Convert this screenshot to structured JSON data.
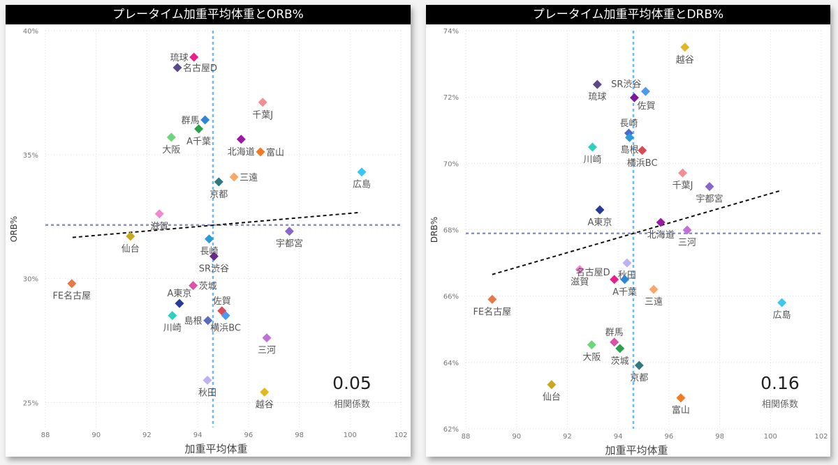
{
  "colors": {
    "mean_line": "#8a8fd0",
    "mean_x_line": "#6cb8f0",
    "trend": "#111111",
    "grid": "#dddddd"
  },
  "chart_data": [
    {
      "type": "scatter",
      "title": "プレータイム加重平均体重とORB%",
      "xlabel": "加重平均体重",
      "ylabel": "ORB%",
      "xlim": [
        88,
        102
      ],
      "ylim": [
        24,
        40
      ],
      "xticks": [
        88,
        90,
        92,
        94,
        96,
        98,
        100,
        102
      ],
      "yticks": [
        25,
        30,
        35,
        40
      ],
      "yfmt": "%",
      "mean_x": 94.6,
      "mean_y": 32.16,
      "trendline": [
        [
          89.07,
          31.66
        ],
        [
          100.42,
          32.67
        ]
      ],
      "correlation": {
        "value": "0.05",
        "label": "相関係数"
      },
      "points": [
        {
          "name": "琉球",
          "x": 93.85,
          "y": 38.93,
          "color": "#e91e8c",
          "label_pos": "left"
        },
        {
          "name": "名古屋D",
          "x": 93.2,
          "y": 38.51,
          "color": "#5b4a8a",
          "label_pos": "right"
        },
        {
          "name": "千葉J",
          "x": 96.56,
          "y": 37.11,
          "color": "#f28e94",
          "label_pos": "below"
        },
        {
          "name": "群馬",
          "x": 94.29,
          "y": 36.4,
          "color": "#2d86d6",
          "label_pos": "left"
        },
        {
          "name": "A千葉",
          "x": 94.04,
          "y": 36.04,
          "color": "#2aa04a",
          "label_pos": "below"
        },
        {
          "name": "大阪",
          "x": 92.96,
          "y": 35.7,
          "color": "#6bd67a",
          "label_pos": "below"
        },
        {
          "name": "北海道",
          "x": 95.71,
          "y": 35.62,
          "color": "#9a1aa0",
          "label_pos": "below"
        },
        {
          "name": "富山",
          "x": 96.47,
          "y": 35.11,
          "color": "#f27a20",
          "label_pos": "right"
        },
        {
          "name": "三遠",
          "x": 95.43,
          "y": 34.1,
          "color": "#f8a868",
          "label_pos": "right"
        },
        {
          "name": "京都",
          "x": 94.83,
          "y": 33.9,
          "color": "#2e7a80",
          "label_pos": "below"
        },
        {
          "name": "広島",
          "x": 100.46,
          "y": 34.3,
          "color": "#38c8f0",
          "label_pos": "below"
        },
        {
          "name": "滋賀",
          "x": 92.49,
          "y": 32.61,
          "color": "#f088d0",
          "label_pos": "below"
        },
        {
          "name": "宇都宮",
          "x": 97.61,
          "y": 31.91,
          "color": "#8a66c8",
          "label_pos": "below"
        },
        {
          "name": "仙台",
          "x": 91.35,
          "y": 31.71,
          "color": "#c8a820",
          "label_pos": "below"
        },
        {
          "name": "長崎",
          "x": 94.45,
          "y": 31.6,
          "color": "#2a9ad8",
          "label_pos": "below"
        },
        {
          "name": "SR渋谷",
          "x": 94.64,
          "y": 30.9,
          "color": "#6a2a8a",
          "label_pos": "below"
        },
        {
          "name": "FE名古屋",
          "x": 89.04,
          "y": 29.8,
          "color": "#e8784a",
          "label_pos": "below"
        },
        {
          "name": "茨城",
          "x": 93.82,
          "y": 29.72,
          "color": "#e050a8",
          "label_pos": "right"
        },
        {
          "name": "A東京",
          "x": 93.28,
          "y": 29.0,
          "color": "#283a9a",
          "label_pos": "above"
        },
        {
          "name": "佐賀",
          "x": 94.95,
          "y": 28.7,
          "color": "#d84a58",
          "label_pos": "above"
        },
        {
          "name": "横浜BC",
          "x": 95.1,
          "y": 28.51,
          "color": "#4a9af0",
          "label_pos": "below"
        },
        {
          "name": "川崎",
          "x": 93.0,
          "y": 28.51,
          "color": "#30d0c0",
          "label_pos": "below"
        },
        {
          "name": "島根",
          "x": 94.4,
          "y": 28.31,
          "color": "#5a6ac0",
          "label_pos": "left"
        },
        {
          "name": "三河",
          "x": 96.72,
          "y": 27.61,
          "color": "#c070d8",
          "label_pos": "below"
        },
        {
          "name": "秋田",
          "x": 94.38,
          "y": 25.9,
          "color": "#c0b0f0",
          "label_pos": "below"
        },
        {
          "name": "越谷",
          "x": 96.63,
          "y": 25.42,
          "color": "#e0b820",
          "label_pos": "below"
        }
      ]
    },
    {
      "type": "scatter",
      "title": "プレータイム加重平均体重とDRB%",
      "xlabel": "加重平均体重",
      "ylabel": "DRB%",
      "xlim": [
        88,
        102
      ],
      "ylim": [
        62,
        74
      ],
      "xticks": [
        88,
        90,
        92,
        94,
        96,
        98,
        100,
        102
      ],
      "yticks": [
        62,
        64,
        66,
        68,
        70,
        72,
        74
      ],
      "yfmt": "%",
      "mean_x": 94.6,
      "mean_y": 67.89,
      "trendline": [
        [
          89.04,
          66.65
        ],
        [
          100.45,
          69.19
        ]
      ],
      "correlation": {
        "value": "0.16",
        "label": "相関係数"
      },
      "points": [
        {
          "name": "越谷",
          "x": 96.63,
          "y": 73.5,
          "color": "#e0b820",
          "label_pos": "below"
        },
        {
          "name": "琉球",
          "x": 93.18,
          "y": 72.38,
          "color": "#5b4a8a",
          "label_pos": "below"
        },
        {
          "name": "SR渋谷",
          "x": 95.08,
          "y": 72.17,
          "color": "#4a9af0",
          "label_pos": "aboveleft"
        },
        {
          "name": "佐賀",
          "x": 94.64,
          "y": 71.98,
          "color": "#7a1a9a",
          "label_pos": "belowright"
        },
        {
          "name": "長崎",
          "x": 94.42,
          "y": 70.91,
          "color": "#4a6ac8",
          "label_pos": "above"
        },
        {
          "name": "島根",
          "x": 94.45,
          "y": 70.78,
          "color": "#2a9ad8",
          "label_pos": "below"
        },
        {
          "name": "川崎",
          "x": 92.99,
          "y": 70.49,
          "color": "#30d0c0",
          "label_pos": "below"
        },
        {
          "name": "横浜BC",
          "x": 94.95,
          "y": 70.39,
          "color": "#d84a58",
          "label_pos": "below"
        },
        {
          "name": "千葉J",
          "x": 96.54,
          "y": 69.71,
          "color": "#f28e94",
          "label_pos": "below"
        },
        {
          "name": "宇都宮",
          "x": 97.6,
          "y": 69.3,
          "color": "#8a66c8",
          "label_pos": "below"
        },
        {
          "name": "A東京",
          "x": 93.28,
          "y": 68.6,
          "color": "#283a9a",
          "label_pos": "below"
        },
        {
          "name": "北海道",
          "x": 95.68,
          "y": 68.22,
          "color": "#9a1aa0",
          "label_pos": "below"
        },
        {
          "name": "三河",
          "x": 96.72,
          "y": 67.99,
          "color": "#c070d8",
          "label_pos": "below"
        },
        {
          "name": "秋田",
          "x": 94.35,
          "y": 67.0,
          "color": "#c0b0f0",
          "label_pos": "below"
        },
        {
          "name": "滋賀",
          "x": 92.49,
          "y": 66.8,
          "color": "#f088d0",
          "label_pos": "below"
        },
        {
          "name": "名古屋D",
          "x": 93.85,
          "y": 66.5,
          "color": "#e91e8c",
          "label_pos": "aboveleft"
        },
        {
          "name": "A千葉",
          "x": 94.26,
          "y": 66.5,
          "color": "#2d86d6",
          "label_pos": "below"
        },
        {
          "name": "三遠",
          "x": 95.4,
          "y": 66.2,
          "color": "#f8a868",
          "label_pos": "below"
        },
        {
          "name": "FE名古屋",
          "x": 89.04,
          "y": 65.9,
          "color": "#e8784a",
          "label_pos": "below"
        },
        {
          "name": "広島",
          "x": 100.45,
          "y": 65.8,
          "color": "#38c8f0",
          "label_pos": "below"
        },
        {
          "name": "群馬",
          "x": 93.85,
          "y": 64.61,
          "color": "#e050a8",
          "label_pos": "above"
        },
        {
          "name": "大阪",
          "x": 92.96,
          "y": 64.53,
          "color": "#6bd67a",
          "label_pos": "below"
        },
        {
          "name": "茨城",
          "x": 94.07,
          "y": 64.42,
          "color": "#2aa04a",
          "label_pos": "below"
        },
        {
          "name": "京都",
          "x": 94.83,
          "y": 63.91,
          "color": "#2e7a80",
          "label_pos": "below"
        },
        {
          "name": "仙台",
          "x": 91.38,
          "y": 63.33,
          "color": "#c8a820",
          "label_pos": "below"
        },
        {
          "name": "富山",
          "x": 96.47,
          "y": 62.93,
          "color": "#f27a20",
          "label_pos": "below"
        }
      ]
    }
  ]
}
